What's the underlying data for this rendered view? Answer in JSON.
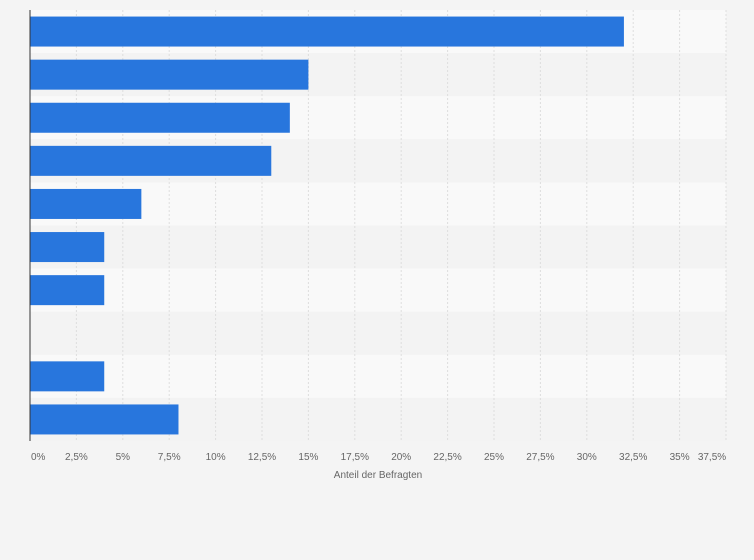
{
  "chart_data": {
    "type": "bar",
    "orientation": "horizontal",
    "title": "",
    "xlabel": "Anteil der Befragten",
    "ylabel": "",
    "categories": [
      "",
      "",
      "",
      "",
      "",
      "",
      "",
      "",
      "",
      ""
    ],
    "values": [
      32,
      15,
      14,
      13,
      6,
      4,
      4,
      0,
      4,
      8
    ],
    "xlim": [
      0,
      37.5
    ],
    "xticks": [
      0,
      2.5,
      5,
      7.5,
      10,
      12.5,
      15,
      17.5,
      20,
      22.5,
      25,
      27.5,
      30,
      32.5,
      35,
      37.5
    ],
    "xtick_labels": [
      "0%",
      "2,5%",
      "5%",
      "7,5%",
      "10%",
      "12,5%",
      "15%",
      "17,5%",
      "20%",
      "22,5%",
      "25%",
      "27,5%",
      "30%",
      "32,5%",
      "35%",
      "37,5%"
    ],
    "grid": true,
    "legend": "none",
    "colors": {
      "bar": "#2876dd",
      "band_light": "#f9f9f9",
      "band_dark": "#f3f3f3",
      "grid": "#dedede",
      "axis": "#333333",
      "text": "#666666"
    }
  }
}
